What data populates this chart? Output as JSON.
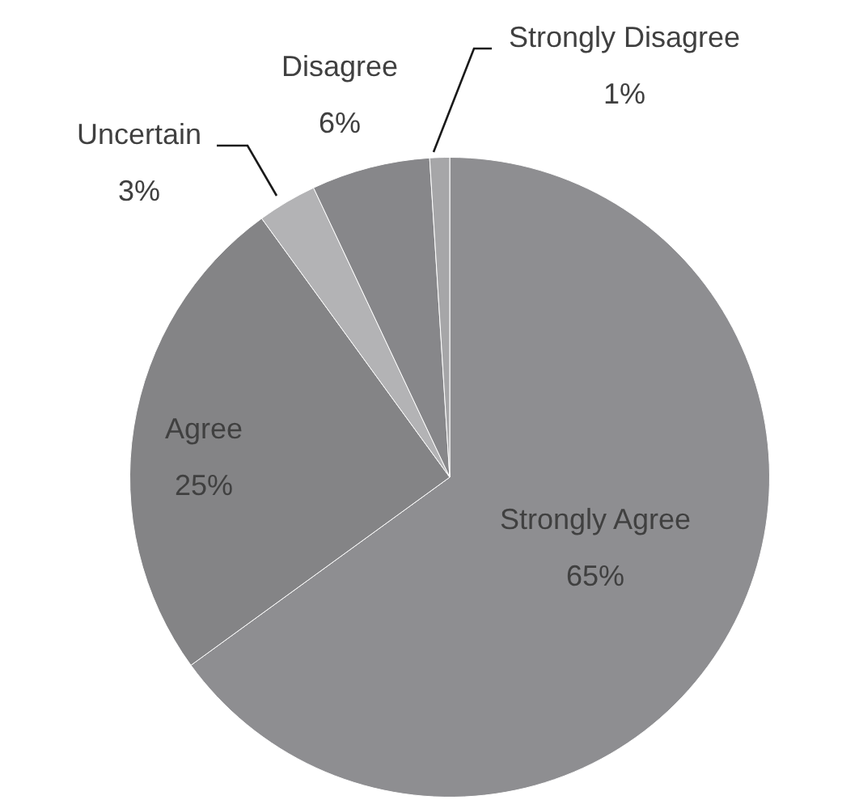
{
  "chart_data": {
    "type": "pie",
    "categories": [
      "Strongly Agree",
      "Agree",
      "Uncertain",
      "Disagree",
      "Strongly Disagree"
    ],
    "values": [
      65,
      25,
      3,
      6,
      1
    ],
    "value_labels": [
      "65%",
      "25%",
      "3%",
      "6%",
      "1%"
    ],
    "colors": [
      "#8e8e91",
      "#848486",
      "#b3b3b5",
      "#87878a",
      "#a6a6a8"
    ],
    "legend": false
  }
}
